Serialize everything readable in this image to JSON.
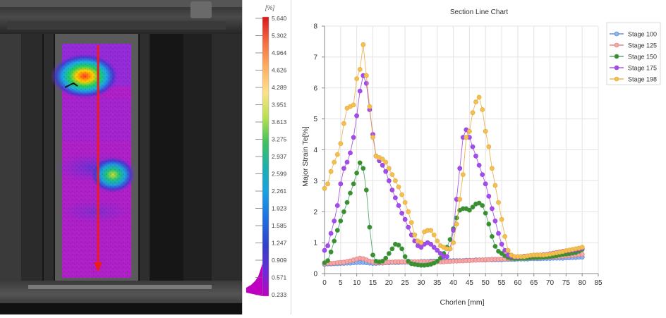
{
  "colorbar": {
    "unit": "[%]",
    "ticks": [
      "5.640",
      "5.302",
      "4.964",
      "4.626",
      "4.289",
      "3.951",
      "3.613",
      "3.275",
      "2.937",
      "2.599",
      "2.261",
      "1.923",
      "1.585",
      "1.247",
      "0.909",
      "0.571",
      "0.233"
    ],
    "colors": [
      "#d7191c",
      "#f46d43",
      "#fdae61",
      "#fee08b",
      "#d9ef8b",
      "#66bd63",
      "#1abc9c",
      "#00bcd4",
      "#2196f3",
      "#3f51b5",
      "#673ab7",
      "#c000c0"
    ]
  },
  "chart_data": {
    "type": "line",
    "title": "Section Line Chart",
    "xlabel": "Chorlen [mm]",
    "ylabel": "Major Strain Te[%]",
    "xlim": [
      0,
      85
    ],
    "ylim": [
      0,
      8
    ],
    "xticks": [
      0,
      5,
      10,
      15,
      20,
      25,
      30,
      35,
      40,
      45,
      50,
      55,
      60,
      65,
      70,
      75,
      80,
      85
    ],
    "yticks": [
      0,
      1,
      2,
      3,
      4,
      5,
      6,
      7,
      8
    ],
    "grid": true,
    "legend_position": "top-right",
    "x": [
      0,
      1,
      2,
      3,
      4,
      5,
      6,
      7,
      8,
      9,
      10,
      11,
      12,
      13,
      14,
      15,
      16,
      17,
      18,
      19,
      20,
      21,
      22,
      23,
      24,
      25,
      26,
      27,
      28,
      29,
      30,
      31,
      32,
      33,
      34,
      35,
      36,
      37,
      38,
      39,
      40,
      41,
      42,
      43,
      44,
      45,
      46,
      47,
      48,
      49,
      50,
      51,
      52,
      53,
      54,
      55,
      56,
      57,
      58,
      59,
      60,
      61,
      62,
      63,
      64,
      65,
      66,
      67,
      68,
      69,
      70,
      71,
      72,
      73,
      74,
      75,
      76,
      77,
      78,
      79,
      80
    ],
    "series": [
      {
        "name": "Stage 100",
        "color": "#4a7fd6",
        "fill": "#8fb3ee",
        "values": [
          0.3,
          0.31,
          0.31,
          0.32,
          0.32,
          0.33,
          0.33,
          0.34,
          0.34,
          0.35,
          0.36,
          0.36,
          0.36,
          0.35,
          0.34,
          0.33,
          0.33,
          0.34,
          0.34,
          0.35,
          0.35,
          0.36,
          0.36,
          0.36,
          0.37,
          0.37,
          0.37,
          0.38,
          0.38,
          0.38,
          0.39,
          0.39,
          0.39,
          0.4,
          0.4,
          0.4,
          0.4,
          0.41,
          0.41,
          0.41,
          0.42,
          0.42,
          0.42,
          0.42,
          0.43,
          0.43,
          0.43,
          0.44,
          0.44,
          0.44,
          0.44,
          0.45,
          0.45,
          0.45,
          0.45,
          0.45,
          0.46,
          0.46,
          0.46,
          0.46,
          0.47,
          0.47,
          0.47,
          0.47,
          0.48,
          0.48,
          0.48,
          0.48,
          0.49,
          0.49,
          0.49,
          0.5,
          0.5,
          0.5,
          0.5,
          0.51,
          0.51,
          0.52,
          0.52,
          0.53,
          0.53
        ]
      },
      {
        "name": "Stage 125",
        "color": "#e07070",
        "fill": "#f4a9a9",
        "values": [
          0.32,
          0.33,
          0.33,
          0.34,
          0.35,
          0.36,
          0.37,
          0.39,
          0.41,
          0.44,
          0.47,
          0.5,
          0.48,
          0.44,
          0.4,
          0.38,
          0.36,
          0.35,
          0.35,
          0.36,
          0.37,
          0.37,
          0.38,
          0.38,
          0.38,
          0.38,
          0.38,
          0.38,
          0.38,
          0.38,
          0.38,
          0.38,
          0.38,
          0.38,
          0.38,
          0.38,
          0.38,
          0.38,
          0.39,
          0.39,
          0.4,
          0.4,
          0.41,
          0.41,
          0.42,
          0.42,
          0.43,
          0.43,
          0.44,
          0.44,
          0.45,
          0.45,
          0.46,
          0.46,
          0.46,
          0.47,
          0.47,
          0.48,
          0.48,
          0.48,
          0.49,
          0.49,
          0.5,
          0.5,
          0.51,
          0.51,
          0.52,
          0.52,
          0.53,
          0.53,
          0.54,
          0.54,
          0.55,
          0.55,
          0.56,
          0.57,
          0.58,
          0.59,
          0.6,
          0.61,
          0.62
        ]
      },
      {
        "name": "Stage 150",
        "color": "#3a9a5a",
        "fill": "#3e8e28",
        "values": [
          0.35,
          0.42,
          0.7,
          1.05,
          1.4,
          1.7,
          2.0,
          2.3,
          2.6,
          2.9,
          3.25,
          3.58,
          3.4,
          2.7,
          1.5,
          0.6,
          0.4,
          0.38,
          0.4,
          0.5,
          0.65,
          0.8,
          0.95,
          0.92,
          0.8,
          0.55,
          0.4,
          0.32,
          0.3,
          0.28,
          0.27,
          0.27,
          0.28,
          0.3,
          0.34,
          0.4,
          0.5,
          0.65,
          0.85,
          1.1,
          1.45,
          1.8,
          2.05,
          2.1,
          2.1,
          2.05,
          2.15,
          2.25,
          2.28,
          2.2,
          1.95,
          1.6,
          1.2,
          0.88,
          0.72,
          0.65,
          0.58,
          0.52,
          0.5,
          0.49,
          0.49,
          0.5,
          0.5,
          0.5,
          0.51,
          0.52,
          0.52,
          0.53,
          0.53,
          0.54,
          0.55,
          0.56,
          0.58,
          0.6,
          0.62,
          0.63,
          0.64,
          0.66,
          0.68,
          0.72,
          0.78
        ]
      },
      {
        "name": "Stage 175",
        "color": "#9b3ee0",
        "fill": "#a14ee8",
        "values": [
          0.75,
          0.9,
          1.3,
          1.7,
          2.2,
          2.9,
          3.4,
          3.6,
          3.9,
          4.4,
          5.1,
          5.9,
          6.4,
          6.15,
          5.3,
          4.5,
          3.8,
          3.65,
          3.5,
          3.3,
          3.0,
          2.7,
          2.45,
          2.2,
          1.95,
          1.75,
          1.5,
          1.25,
          1.05,
          0.9,
          0.85,
          0.95,
          1.0,
          0.95,
          0.85,
          0.75,
          0.65,
          0.55,
          0.55,
          0.8,
          1.4,
          2.4,
          3.4,
          4.4,
          4.65,
          4.4,
          4.1,
          3.8,
          3.5,
          3.2,
          2.9,
          2.5,
          2.1,
          1.7,
          1.3,
          0.95,
          0.75,
          0.6,
          0.55,
          0.54,
          0.53,
          0.55,
          0.56,
          0.57,
          0.58,
          0.59,
          0.6,
          0.6,
          0.61,
          0.62,
          0.64,
          0.66,
          0.68,
          0.7,
          0.72,
          0.73,
          0.74,
          0.75,
          0.77,
          0.79,
          0.82
        ]
      },
      {
        "name": "Stage 198",
        "color": "#e8a83a",
        "fill": "#f0c050",
        "values": [
          2.75,
          2.9,
          3.3,
          3.6,
          3.85,
          4.2,
          4.85,
          5.35,
          5.4,
          5.45,
          6.3,
          6.6,
          7.4,
          6.4,
          5.4,
          4.4,
          3.8,
          3.75,
          3.7,
          3.6,
          3.4,
          3.2,
          3.0,
          2.8,
          2.55,
          2.3,
          2.0,
          1.65,
          1.25,
          1.05,
          1.0,
          1.35,
          1.4,
          1.4,
          1.25,
          1.05,
          0.9,
          0.85,
          0.8,
          0.8,
          1.0,
          1.6,
          2.4,
          3.2,
          4.4,
          4.6,
          5.2,
          5.55,
          5.7,
          5.3,
          4.6,
          4.1,
          3.4,
          2.85,
          2.3,
          1.75,
          1.2,
          0.75,
          0.6,
          0.55,
          0.55,
          0.55,
          0.55,
          0.57,
          0.59,
          0.6,
          0.6,
          0.6,
          0.6,
          0.61,
          0.63,
          0.65,
          0.67,
          0.69,
          0.71,
          0.74,
          0.76,
          0.78,
          0.8,
          0.82,
          0.85
        ]
      }
    ]
  }
}
